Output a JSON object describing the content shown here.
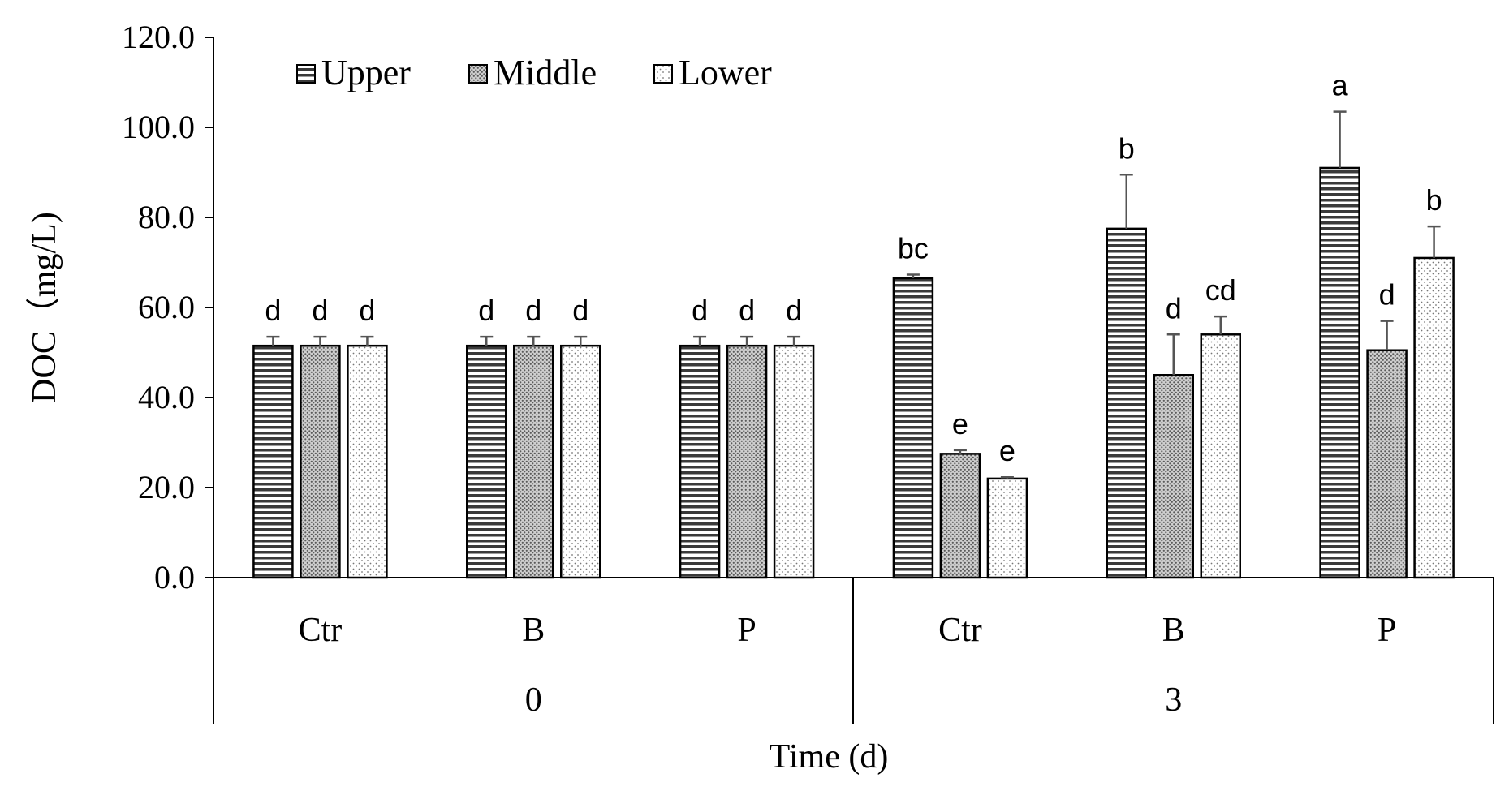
{
  "chart_data": {
    "type": "bar",
    "title": "",
    "xlabel": "Time (d)",
    "ylabel": "DOC（mg/L)",
    "ylim": [
      0,
      120
    ],
    "yticks": [
      "0.0",
      "20.0",
      "40.0",
      "60.0",
      "80.0",
      "100.0",
      "120.0"
    ],
    "categories": [
      "Ctr",
      "B",
      "P",
      "Ctr",
      "B",
      "P"
    ],
    "groups": [
      {
        "label": "0",
        "categories": [
          0,
          1,
          2
        ]
      },
      {
        "label": "3",
        "categories": [
          3,
          4,
          5
        ]
      }
    ],
    "legend_position": "top-left",
    "series": [
      {
        "name": "Upper",
        "pattern": "horizontal-lines",
        "values": [
          51.5,
          51.5,
          51.5,
          66.5,
          77.5,
          91.0
        ],
        "errors": [
          2.0,
          2.0,
          2.0,
          0.8,
          12.0,
          12.5
        ],
        "labels": [
          "d",
          "d",
          "d",
          "bc",
          "b",
          "a"
        ]
      },
      {
        "name": "Middle",
        "pattern": "dense-dots",
        "values": [
          51.5,
          51.5,
          51.5,
          27.5,
          45.0,
          50.5
        ],
        "errors": [
          2.0,
          2.0,
          2.0,
          0.8,
          9.0,
          6.5
        ],
        "labels": [
          "d",
          "d",
          "d",
          "e",
          "d",
          "d"
        ]
      },
      {
        "name": "Lower",
        "pattern": "sparse-dots",
        "values": [
          51.5,
          51.5,
          51.5,
          22.0,
          54.0,
          71.0
        ],
        "errors": [
          2.0,
          2.0,
          2.0,
          0.3,
          4.0,
          7.0
        ],
        "labels": [
          "d",
          "d",
          "d",
          "e",
          "cd",
          "b"
        ]
      }
    ]
  }
}
